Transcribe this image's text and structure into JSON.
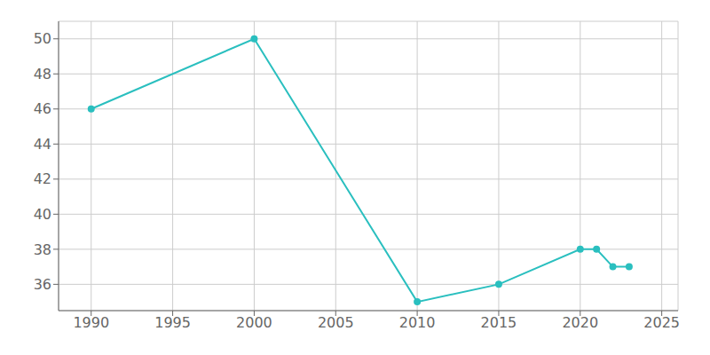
{
  "chart_data": {
    "type": "line",
    "x": [
      1990,
      2000,
      2010,
      2015,
      2020,
      2021,
      2022,
      2023
    ],
    "values": [
      46,
      50,
      35,
      36,
      38,
      38,
      37,
      37
    ],
    "color": "#2abfbf",
    "marker": "circle",
    "xlim": [
      1988,
      2026
    ],
    "ylim": [
      34.5,
      51
    ],
    "xticks": [
      1990,
      1995,
      2000,
      2005,
      2010,
      2015,
      2020,
      2025
    ],
    "yticks": [
      36,
      38,
      40,
      42,
      44,
      46,
      48,
      50
    ],
    "grid": true
  }
}
